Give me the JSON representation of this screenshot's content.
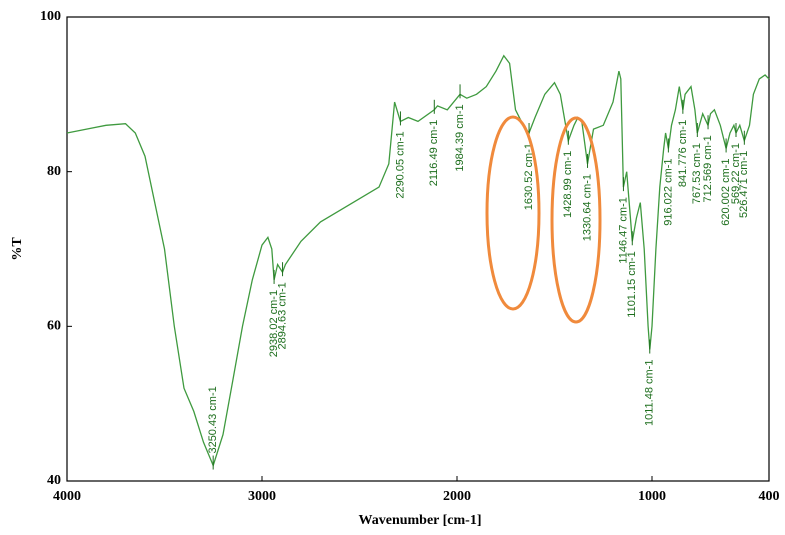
{
  "chart_data": {
    "type": "line",
    "xlabel": "Wavenumber [cm-1]",
    "ylabel": "%T",
    "xlim": [
      4000,
      400
    ],
    "ylim": [
      40,
      100
    ],
    "xticks": [
      4000,
      3000,
      2000,
      1000,
      400
    ],
    "yticks": [
      40,
      60,
      80,
      100
    ],
    "series": [
      {
        "color": "#3f9a3f",
        "x": [
          4000,
          3800,
          3700,
          3650,
          3600,
          3500,
          3450,
          3400,
          3350,
          3300,
          3250.43,
          3200,
          3150,
          3100,
          3050,
          3000,
          2970,
          2950,
          2938.02,
          2920,
          2894.63,
          2880,
          2800,
          2700,
          2600,
          2500,
          2400,
          2350,
          2320,
          2290.05,
          2250,
          2200,
          2116.49,
          2100,
          2050,
          1984.39,
          1950,
          1900,
          1850,
          1800,
          1760,
          1730,
          1700,
          1660,
          1630.52,
          1600,
          1550,
          1500,
          1470,
          1428.99,
          1400,
          1380,
          1360,
          1330.64,
          1300,
          1250,
          1200,
          1170,
          1160,
          1146.47,
          1130,
          1101.15,
          1080,
          1060,
          1040,
          1020,
          1011.48,
          1000,
          980,
          960,
          940,
          930,
          916.022,
          900,
          880,
          860,
          841.776,
          830,
          800,
          780,
          767.53,
          740,
          712.569,
          700,
          680,
          650,
          620.002,
          600,
          580,
          569.22,
          550,
          526.471,
          500,
          480,
          450,
          420,
          400
        ],
        "values": [
          85,
          86,
          86.2,
          85,
          82,
          70,
          60,
          52,
          49,
          45,
          42,
          46,
          53,
          60,
          66,
          70.5,
          71.5,
          70,
          66,
          68,
          67,
          68,
          71,
          73.5,
          75,
          76.5,
          78,
          81,
          89,
          86.5,
          87,
          86.5,
          88,
          88.5,
          88,
          90,
          89.5,
          90,
          91,
          93,
          95,
          94,
          88,
          86,
          85,
          87,
          90,
          91.5,
          90,
          84,
          86,
          87,
          86.5,
          81,
          85.5,
          86,
          89,
          93,
          92,
          78,
          80,
          71,
          74,
          76,
          70,
          60,
          57,
          60,
          70,
          78,
          83,
          85,
          83,
          86,
          88,
          91,
          88,
          90,
          91,
          88,
          85,
          87.5,
          86,
          87.5,
          88,
          86,
          83,
          85,
          86,
          85,
          86,
          84,
          86,
          90,
          92,
          92.5,
          92
        ]
      }
    ],
    "peaks": [
      {
        "value": 3250.43,
        "label": "3250.43 cm-1"
      },
      {
        "value": 2938.02,
        "label": "2938.02 cm-1"
      },
      {
        "value": 2894.63,
        "label": "2894.63 cm-1"
      },
      {
        "value": 2290.05,
        "label": "2290.05 cm-1"
      },
      {
        "value": 2116.49,
        "label": "2116.49 cm-1"
      },
      {
        "value": 1984.39,
        "label": "1984.39 cm-1"
      },
      {
        "value": 1630.52,
        "label": "1630.52 cm-1"
      },
      {
        "value": 1428.99,
        "label": "1428.99 cm-1"
      },
      {
        "value": 1330.64,
        "label": "1330.64 cm-1"
      },
      {
        "value": 1146.47,
        "label": "1146.47 cm-1"
      },
      {
        "value": 1101.15,
        "label": "1101.15 cm-1"
      },
      {
        "value": 1011.48,
        "label": "1011.48 cm-1"
      },
      {
        "value": 916.022,
        "label": "916.022 cm-1"
      },
      {
        "value": 841.776,
        "label": "841.776 cm-1"
      },
      {
        "value": 767.53,
        "label": "767.53 cm-1"
      },
      {
        "value": 712.569,
        "label": "712.569 cm-1"
      },
      {
        "value": 620.002,
        "label": "620.002 cm-1"
      },
      {
        "value": 569.22,
        "label": "569.22 cm-1"
      },
      {
        "value": 526.471,
        "label": "526.471 cm-1"
      }
    ]
  }
}
